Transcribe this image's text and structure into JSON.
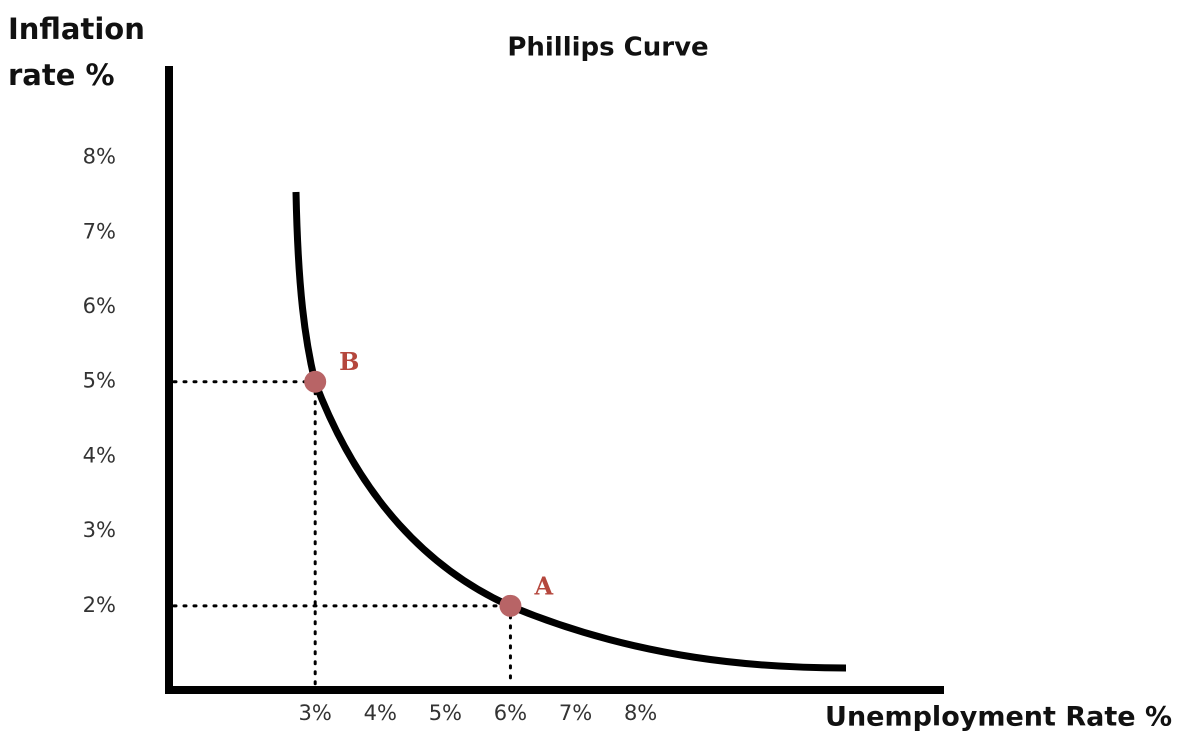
{
  "chart_data": {
    "type": "scatter",
    "title": "Phillips Curve",
    "x_label": "Unemployment Rate %",
    "y_label": "Inflation rate %",
    "point_labels": [
      "A",
      "B"
    ],
    "x": [
      6,
      3
    ],
    "values": [
      2,
      5
    ],
    "color": "#b86466",
    "xlim": [
      0.8,
      12.6
    ],
    "xticks": [
      {
        "value": 3,
        "label": "3%"
      },
      {
        "value": 4,
        "label": "4%"
      },
      {
        "value": 5,
        "label": "5%"
      },
      {
        "value": 6,
        "label": "6%"
      },
      {
        "value": 7,
        "label": "7%"
      },
      {
        "value": 8,
        "label": "8%"
      }
    ],
    "ylim": [
      0.9,
      9.2
    ],
    "yticks": [
      {
        "value": 2,
        "label": "2%"
      },
      {
        "value": 3,
        "label": "3%"
      },
      {
        "value": 4,
        "label": "4%"
      },
      {
        "value": 5,
        "label": "5%"
      },
      {
        "value": 6,
        "label": "6%"
      },
      {
        "value": 7,
        "label": "7%"
      },
      {
        "value": 8,
        "label": "8%"
      }
    ]
  }
}
